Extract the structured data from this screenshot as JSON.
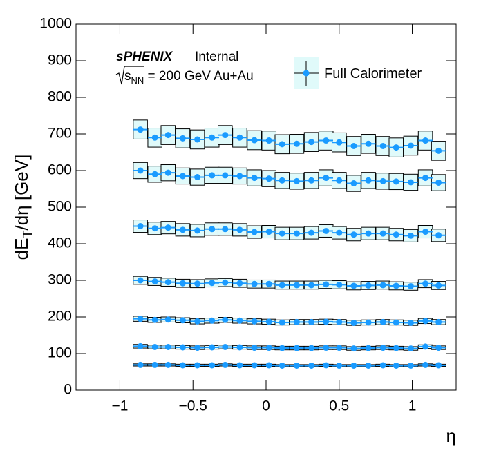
{
  "chart_data": {
    "type": "errorbox",
    "experiment": "sPHENIX",
    "status": "Internal",
    "energy": [
      "s",
      "NN",
      " = 200 GeV Au+Au"
    ],
    "ylabel": [
      "dE",
      "T",
      "/dη [GeV]"
    ],
    "xlabel": "η",
    "x": [
      -0.86,
      -0.76,
      -0.67,
      -0.57,
      -0.47,
      -0.37,
      -0.28,
      -0.18,
      -0.08,
      0.02,
      0.11,
      0.21,
      0.31,
      0.41,
      0.5,
      0.6,
      0.7,
      0.8,
      0.89,
      0.99,
      1.09,
      1.18
    ],
    "xlim": [
      -1.3,
      1.3
    ],
    "xticks": [
      {
        "value": -1,
        "label": "−1"
      },
      {
        "value": -0.5,
        "label": "−0.5"
      },
      0,
      0.5,
      1
    ],
    "ylim": [
      0,
      1000
    ],
    "yticks": [
      0,
      100,
      200,
      300,
      400,
      500,
      600,
      700,
      800,
      900,
      1000
    ],
    "marker_color": "#1a9bff",
    "box_color": "#e0fafa",
    "series": [
      {
        "name": "Full Calorimeter",
        "error": 26,
        "values": [
          712,
          690,
          697,
          688,
          685,
          690,
          697,
          690,
          683,
          682,
          672,
          673,
          678,
          682,
          677,
          667,
          673,
          667,
          663,
          668,
          682,
          654
        ]
      },
      {
        "error": 22,
        "values": [
          600,
          590,
          594,
          585,
          582,
          587,
          587,
          585,
          580,
          578,
          573,
          571,
          573,
          580,
          573,
          565,
          573,
          571,
          570,
          568,
          580,
          567
        ]
      },
      {
        "error": 17,
        "values": [
          448,
          442,
          444,
          438,
          436,
          440,
          440,
          438,
          432,
          433,
          428,
          428,
          430,
          435,
          430,
          425,
          428,
          428,
          425,
          422,
          433,
          423
        ]
      },
      {
        "error": 11,
        "values": [
          300,
          297,
          295,
          292,
          291,
          293,
          294,
          292,
          290,
          290,
          287,
          287,
          287,
          289,
          288,
          285,
          286,
          287,
          285,
          284,
          291,
          286
        ]
      },
      {
        "error": 7,
        "values": [
          195,
          192,
          193,
          191,
          188,
          190,
          192,
          190,
          188,
          187,
          185,
          186,
          186,
          187,
          186,
          184,
          185,
          186,
          185,
          184,
          189,
          186
        ]
      },
      {
        "error": 5,
        "values": [
          120,
          118,
          118,
          117,
          116,
          117,
          118,
          117,
          116,
          116,
          115,
          115,
          115,
          116,
          116,
          114,
          115,
          116,
          115,
          114,
          119,
          116
        ]
      },
      {
        "error": 3,
        "values": [
          69,
          69,
          69,
          68,
          68,
          68,
          69,
          68,
          68,
          68,
          67,
          67,
          67,
          68,
          67,
          67,
          67,
          68,
          67,
          67,
          69,
          68
        ]
      }
    ]
  }
}
